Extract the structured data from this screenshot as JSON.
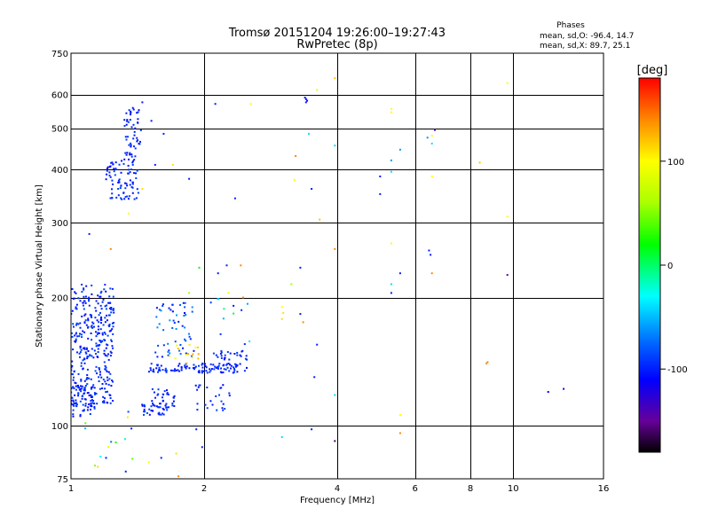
{
  "chart_data": {
    "type": "scatter",
    "title": "Tromsø 20151204 19:26:00–19:27:43",
    "subtitle": "RwPretec (8p)",
    "xlabel": "Frequency [MHz]",
    "ylabel": "Stationary phase Virtual Height [km]",
    "x_scale": "log",
    "y_scale": "log",
    "xlim": [
      1,
      16
    ],
    "ylim": [
      75,
      750
    ],
    "x_ticks": [
      1,
      2,
      4,
      6,
      8,
      10,
      16
    ],
    "x_tick_labels": [
      "1",
      "2",
      "4",
      "6",
      "8",
      "10",
      "16"
    ],
    "y_ticks": [
      75,
      100,
      200,
      300,
      400,
      500,
      600,
      750
    ],
    "y_tick_labels": [
      "75",
      "100",
      "200",
      "300",
      "400",
      "500",
      "600",
      "750"
    ],
    "grid": true,
    "phases_box": {
      "heading": "Phases",
      "lines": [
        "mean, sd,O: -96.4, 14.7",
        "mean, sd,X: 89.7, 25.1"
      ]
    },
    "colorbar": {
      "unit": "[deg]",
      "range": [
        -180,
        180
      ],
      "ticks": [
        100,
        0,
        -100
      ],
      "tick_labels": [
        "100",
        "0",
        "-100"
      ],
      "stops": [
        {
          "value": 180,
          "color": "#ff0000"
        },
        {
          "value": 140,
          "color": "#ff8800"
        },
        {
          "value": 100,
          "color": "#ffff00"
        },
        {
          "value": 60,
          "color": "#aaff00"
        },
        {
          "value": 20,
          "color": "#00ff00"
        },
        {
          "value": -30,
          "color": "#00ffff"
        },
        {
          "value": -75,
          "color": "#0066ff"
        },
        {
          "value": -110,
          "color": "#0000ff"
        },
        {
          "value": -150,
          "color": "#660099"
        },
        {
          "value": -180,
          "color": "#000000"
        }
      ]
    },
    "clusters": [
      {
        "f": [
          1.0,
          1.25
        ],
        "h": [
          112,
          215
        ],
        "n": 330,
        "phase": [
          -110,
          -85
        ]
      },
      {
        "f": [
          1.0,
          1.14
        ],
        "h": [
          104,
          125
        ],
        "n": 60,
        "phase": [
          -110,
          -85
        ]
      },
      {
        "f": [
          1.2,
          1.42
        ],
        "h": [
          340,
          420
        ],
        "n": 80,
        "phase": [
          -110,
          -85
        ]
      },
      {
        "f": [
          1.32,
          1.44
        ],
        "h": [
          420,
          560
        ],
        "n": 55,
        "phase": [
          -110,
          -85
        ]
      },
      {
        "f": [
          1.44,
          1.65
        ],
        "h": [
          106,
          113
        ],
        "n": 35,
        "phase": [
          -110,
          -85
        ]
      },
      {
        "f": [
          1.52,
          1.72
        ],
        "h": [
          110,
          122
        ],
        "n": 30,
        "phase": [
          -110,
          -85
        ]
      },
      {
        "f": [
          1.5,
          2.5
        ],
        "h": [
          133,
          140
        ],
        "n": 110,
        "phase": [
          -110,
          -85
        ]
      },
      {
        "f": [
          1.55,
          1.9
        ],
        "h": [
          145,
          195
        ],
        "n": 55,
        "phase": [
          -110,
          -60
        ]
      },
      {
        "f": [
          1.9,
          2.3
        ],
        "h": [
          108,
          125
        ],
        "n": 25,
        "phase": [
          -110,
          -85
        ]
      },
      {
        "f": [
          2.1,
          2.5
        ],
        "h": [
          142,
          150
        ],
        "n": 25,
        "phase": [
          -110,
          -85
        ]
      },
      {
        "f": [
          1.65,
          1.95
        ],
        "h": [
          140,
          155
        ],
        "n": 14,
        "phase": [
          85,
          130
        ]
      },
      {
        "f": [
          2.0,
          2.6
        ],
        "h": [
          150,
          200
        ],
        "n": 12,
        "phase": [
          -110,
          20
        ]
      },
      {
        "f": [
          1.05,
          1.4
        ],
        "h": [
          78,
          112
        ],
        "n": 12,
        "phase": [
          -110,
          130
        ]
      }
    ],
    "points": [
      {
        "f": 1.45,
        "h": 575,
        "phase": -100
      },
      {
        "f": 1.52,
        "h": 520,
        "phase": -100
      },
      {
        "f": 1.62,
        "h": 485,
        "phase": -100
      },
      {
        "f": 1.55,
        "h": 410,
        "phase": -100
      },
      {
        "f": 1.7,
        "h": 410,
        "phase": 110
      },
      {
        "f": 1.45,
        "h": 360,
        "phase": 110
      },
      {
        "f": 1.35,
        "h": 315,
        "phase": 100
      },
      {
        "f": 1.85,
        "h": 380,
        "phase": -100
      },
      {
        "f": 1.1,
        "h": 282,
        "phase": -100
      },
      {
        "f": 1.23,
        "h": 260,
        "phase": 140
      },
      {
        "f": 1.95,
        "h": 235,
        "phase": 20
      },
      {
        "f": 1.85,
        "h": 205,
        "phase": 60
      },
      {
        "f": 2.12,
        "h": 570,
        "phase": -100
      },
      {
        "f": 2.55,
        "h": 570,
        "phase": 100
      },
      {
        "f": 2.35,
        "h": 342,
        "phase": -100
      },
      {
        "f": 2.25,
        "h": 238,
        "phase": -100
      },
      {
        "f": 2.42,
        "h": 238,
        "phase": 140
      },
      {
        "f": 2.15,
        "h": 228,
        "phase": -100
      },
      {
        "f": 2.27,
        "h": 205,
        "phase": 100
      },
      {
        "f": 2.45,
        "h": 200,
        "phase": 140
      },
      {
        "f": 3.0,
        "h": 190,
        "phase": 100
      },
      {
        "f": 3.02,
        "h": 184,
        "phase": 110
      },
      {
        "f": 3.0,
        "h": 178,
        "phase": 110
      },
      {
        "f": 3.3,
        "h": 183,
        "phase": -100
      },
      {
        "f": 3.35,
        "h": 175,
        "phase": 140
      },
      {
        "f": 3.15,
        "h": 215,
        "phase": 60
      },
      {
        "f": 3.3,
        "h": 235,
        "phase": -100
      },
      {
        "f": 3.38,
        "h": 590,
        "phase": -100
      },
      {
        "f": 3.4,
        "h": 585,
        "phase": -110
      },
      {
        "f": 3.42,
        "h": 580,
        "phase": -120
      },
      {
        "f": 3.4,
        "h": 575,
        "phase": -100
      },
      {
        "f": 3.6,
        "h": 615,
        "phase": 90
      },
      {
        "f": 3.95,
        "h": 655,
        "phase": 120
      },
      {
        "f": 3.45,
        "h": 485,
        "phase": -40
      },
      {
        "f": 3.95,
        "h": 455,
        "phase": -40
      },
      {
        "f": 3.5,
        "h": 360,
        "phase": -100
      },
      {
        "f": 3.22,
        "h": 430,
        "phase": 140
      },
      {
        "f": 3.2,
        "h": 378,
        "phase": 100
      },
      {
        "f": 3.65,
        "h": 305,
        "phase": 120
      },
      {
        "f": 3.95,
        "h": 260,
        "phase": 140
      },
      {
        "f": 3.6,
        "h": 155,
        "phase": -100
      },
      {
        "f": 3.55,
        "h": 130,
        "phase": -100
      },
      {
        "f": 3.95,
        "h": 118,
        "phase": -40
      },
      {
        "f": 3.5,
        "h": 98,
        "phase": -100
      },
      {
        "f": 3.95,
        "h": 92,
        "phase": -160
      },
      {
        "f": 3.0,
        "h": 94,
        "phase": -40
      },
      {
        "f": 5.0,
        "h": 385,
        "phase": -100
      },
      {
        "f": 5.0,
        "h": 350,
        "phase": -100
      },
      {
        "f": 5.3,
        "h": 555,
        "phase": 100
      },
      {
        "f": 5.3,
        "h": 545,
        "phase": 100
      },
      {
        "f": 5.3,
        "h": 420,
        "phase": -60
      },
      {
        "f": 5.3,
        "h": 395,
        "phase": -40
      },
      {
        "f": 5.55,
        "h": 445,
        "phase": -60
      },
      {
        "f": 5.3,
        "h": 268,
        "phase": 100
      },
      {
        "f": 5.3,
        "h": 215,
        "phase": -40
      },
      {
        "f": 5.3,
        "h": 205,
        "phase": -100
      },
      {
        "f": 5.55,
        "h": 228,
        "phase": -100
      },
      {
        "f": 5.55,
        "h": 106,
        "phase": 100
      },
      {
        "f": 5.55,
        "h": 96,
        "phase": 140
      },
      {
        "f": 6.4,
        "h": 475,
        "phase": -60
      },
      {
        "f": 6.55,
        "h": 480,
        "phase": 100
      },
      {
        "f": 6.65,
        "h": 495,
        "phase": -140
      },
      {
        "f": 6.55,
        "h": 460,
        "phase": -40
      },
      {
        "f": 6.55,
        "h": 385,
        "phase": 100
      },
      {
        "f": 6.45,
        "h": 258,
        "phase": -100
      },
      {
        "f": 6.5,
        "h": 252,
        "phase": -100
      },
      {
        "f": 6.55,
        "h": 228,
        "phase": 140
      },
      {
        "f": 8.4,
        "h": 415,
        "phase": 120
      },
      {
        "f": 9.7,
        "h": 638,
        "phase": 100
      },
      {
        "f": 9.7,
        "h": 310,
        "phase": 100
      },
      {
        "f": 9.7,
        "h": 226,
        "phase": -140
      },
      {
        "f": 8.7,
        "h": 140,
        "phase": 140
      },
      {
        "f": 8.75,
        "h": 141,
        "phase": 140
      },
      {
        "f": 12.0,
        "h": 120,
        "phase": -110
      },
      {
        "f": 13.0,
        "h": 122,
        "phase": -120
      },
      {
        "f": 1.05,
        "h": 106,
        "phase": -100
      },
      {
        "f": 1.2,
        "h": 84,
        "phase": -100
      },
      {
        "f": 1.15,
        "h": 80,
        "phase": 110
      },
      {
        "f": 1.33,
        "h": 78,
        "phase": -100
      },
      {
        "f": 1.5,
        "h": 82,
        "phase": 100
      },
      {
        "f": 1.6,
        "h": 84,
        "phase": -100
      },
      {
        "f": 1.73,
        "h": 86,
        "phase": 110
      },
      {
        "f": 1.75,
        "h": 76,
        "phase": 140
      },
      {
        "f": 1.92,
        "h": 98,
        "phase": -100
      },
      {
        "f": 1.98,
        "h": 89,
        "phase": -100
      }
    ]
  }
}
